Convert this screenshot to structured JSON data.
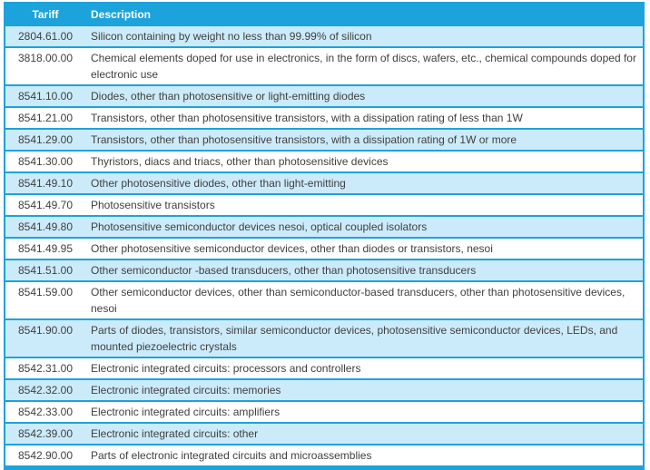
{
  "colors": {
    "accent": "#1ca3dc",
    "row_alt": "#ccebfa",
    "text": "#3f3f3f",
    "header_text": "#ffffff"
  },
  "table": {
    "columns": [
      {
        "key": "tariff",
        "label": "Tariff"
      },
      {
        "key": "description",
        "label": "Description"
      }
    ],
    "rows": [
      {
        "tariff": "2804.61.00",
        "description": "Silicon containing by weight no less than 99.99% of silicon"
      },
      {
        "tariff": "3818.00.00",
        "description": "Chemical elements doped for use in electronics, in the form of discs, wafers, etc., chemical compounds doped for electronic use"
      },
      {
        "tariff": "8541.10.00",
        "description": "Diodes, other than photosensitive or light-emitting diodes"
      },
      {
        "tariff": "8541.21.00",
        "description": "Transistors, other than photosensitive transistors, with a dissipation rating of less than 1W"
      },
      {
        "tariff": "8541.29.00",
        "description": "Transistors, other than photosensitive transistors, with a dissipation rating of 1W or more"
      },
      {
        "tariff": "8541.30.00",
        "description": "Thyristors, diacs and triacs, other than photosensitive devices"
      },
      {
        "tariff": "8541.49.10",
        "description": "Other photosensitive diodes, other than light-emitting"
      },
      {
        "tariff": "8541.49.70",
        "description": "Photosensitive transistors"
      },
      {
        "tariff": "8541.49.80",
        "description": "Photosensitive semiconductor devices nesoi, optical coupled isolators"
      },
      {
        "tariff": "8541.49.95",
        "description": "Other photosensitive semiconductor devices, other than diodes or transistors, nesoi"
      },
      {
        "tariff": "8541.51.00",
        "description": "Other semiconductor -based transducers, other than photosensitive transducers"
      },
      {
        "tariff": "8541.59.00",
        "description": "Other semiconductor devices, other than semiconductor-based transducers, other than photosensitive devices, nesoi",
        "min_lines": 2
      },
      {
        "tariff": "8541.90.00",
        "description": "Parts of diodes, transistors, similar semiconductor devices, photosensitive semiconductor devices, LEDs, and mounted piezoelectric crystals"
      },
      {
        "tariff": "8542.31.00",
        "description": "Electronic integrated circuits: processors and controllers"
      },
      {
        "tariff": "8542.32.00",
        "description": "Electronic integrated circuits: memories"
      },
      {
        "tariff": "8542.33.00",
        "description": "Electronic integrated circuits: amplifiers"
      },
      {
        "tariff": "8542.39.00",
        "description": "Electronic integrated circuits: other"
      },
      {
        "tariff": "8542.90.00",
        "description": "Parts of electronic integrated circuits and microassemblies"
      }
    ]
  }
}
